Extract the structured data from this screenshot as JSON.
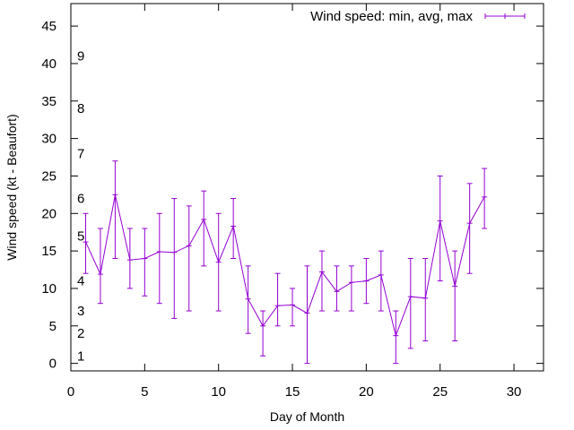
{
  "chart_data": {
    "type": "line",
    "xlabel": "Day of Month",
    "ylabel": "Wind speed (kt - Beaufort)",
    "xlim": [
      0,
      32
    ],
    "ylim": [
      -1,
      48
    ],
    "x_ticks": [
      0,
      5,
      10,
      15,
      20,
      25,
      30
    ],
    "y_ticks": [
      0,
      5,
      10,
      15,
      20,
      25,
      30,
      35,
      40,
      45
    ],
    "grid": false,
    "legend_position": "top-right",
    "beaufort_labels": [
      {
        "label": "1",
        "value": 1
      },
      {
        "label": "2",
        "value": 4
      },
      {
        "label": "3",
        "value": 7
      },
      {
        "label": "4",
        "value": 11
      },
      {
        "label": "5",
        "value": 17
      },
      {
        "label": "6",
        "value": 22
      },
      {
        "label": "7",
        "value": 28
      },
      {
        "label": "8",
        "value": 34
      },
      {
        "label": "9",
        "value": 41
      }
    ],
    "series": [
      {
        "name": "Wind speed: min, avg, max",
        "color": "#9400d3",
        "x": [
          1,
          2,
          3,
          4,
          5,
          6,
          7,
          8,
          9,
          10,
          11,
          12,
          13,
          14,
          15,
          16,
          17,
          18,
          19,
          20,
          21,
          22,
          23,
          24,
          25,
          26,
          27,
          28
        ],
        "avg": [
          16.2,
          11.9,
          22.5,
          13.8,
          14.0,
          14.9,
          14.8,
          15.7,
          19.2,
          13.5,
          18.3,
          8.6,
          5.0,
          7.7,
          7.8,
          6.7,
          12.2,
          9.6,
          10.8,
          11.0,
          11.8,
          3.7,
          8.9,
          8.7,
          19.0,
          10.3,
          18.7,
          22.2
        ],
        "min": [
          12,
          8,
          14,
          10,
          9,
          8,
          6,
          7,
          13,
          7,
          14,
          4,
          1,
          5,
          5,
          0,
          7,
          7,
          7,
          8,
          7,
          0,
          2,
          3,
          11,
          3,
          12,
          18
        ],
        "max": [
          20,
          18,
          27,
          18,
          18,
          20,
          22,
          21,
          23,
          20,
          22,
          13,
          7,
          12,
          10,
          13,
          15,
          13,
          13,
          14,
          15,
          7,
          14,
          14,
          25,
          15,
          24,
          26
        ]
      }
    ]
  }
}
